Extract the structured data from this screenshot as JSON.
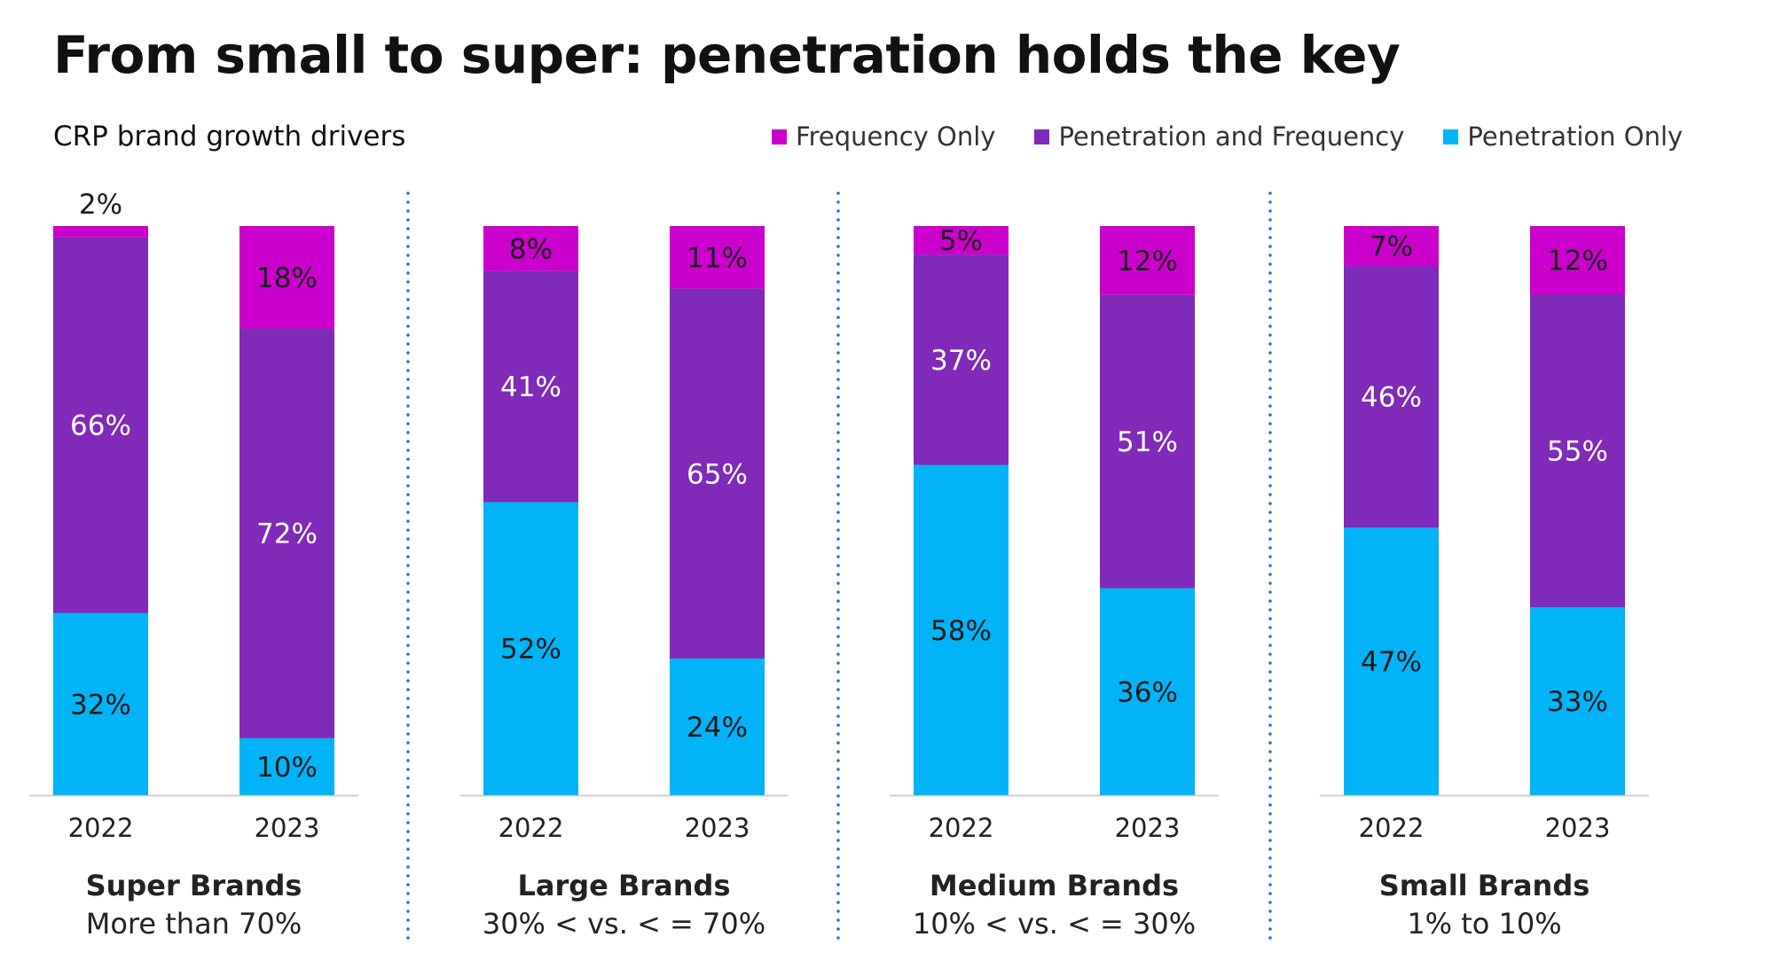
{
  "title": "From small to super: penetration holds the key",
  "subtitle": "CRP brand growth drivers",
  "colors": {
    "frequency_only": "#cc00cc",
    "penetration_and_frequency": "#7f2ab8",
    "penetration_only": "#00b4f7",
    "divider": "#1f6fd6",
    "baseline": "#d0d0d0"
  },
  "legend": [
    {
      "label": "Frequency Only",
      "color": "#cc00cc"
    },
    {
      "label": "Penetration and Frequency",
      "color": "#7f2ab8"
    },
    {
      "label": "Penetration Only",
      "color": "#00b4f7"
    }
  ],
  "chart_data": {
    "type": "bar",
    "stacked": true,
    "percent": true,
    "title": "From small to super: penetration holds the key",
    "subtitle": "CRP brand growth drivers",
    "legend_position": "top-right",
    "series_order_bottom_to_top": [
      "Penetration Only",
      "Penetration and Frequency",
      "Frequency Only"
    ],
    "groups": [
      {
        "name": "Super Brands",
        "sublabel": "More than 70%",
        "bars": [
          {
            "year": "2022",
            "penetration_only": 32,
            "penetration_and_frequency": 66,
            "frequency_only": 2
          },
          {
            "year": "2023",
            "penetration_only": 10,
            "penetration_and_frequency": 72,
            "frequency_only": 18
          }
        ]
      },
      {
        "name": "Large Brands",
        "sublabel": "30% < vs. < = 70%",
        "bars": [
          {
            "year": "2022",
            "penetration_only": 52,
            "penetration_and_frequency": 41,
            "frequency_only": 8
          },
          {
            "year": "2023",
            "penetration_only": 24,
            "penetration_and_frequency": 65,
            "frequency_only": 11
          }
        ]
      },
      {
        "name": "Medium Brands",
        "sublabel": "10% < vs. < = 30%",
        "bars": [
          {
            "year": "2022",
            "penetration_only": 58,
            "penetration_and_frequency": 37,
            "frequency_only": 5
          },
          {
            "year": "2023",
            "penetration_only": 36,
            "penetration_and_frequency": 51,
            "frequency_only": 12
          }
        ]
      },
      {
        "name": "Small Brands",
        "sublabel": "1% to 10%",
        "bars": [
          {
            "year": "2022",
            "penetration_only": 47,
            "penetration_and_frequency": 46,
            "frequency_only": 7
          },
          {
            "year": "2023",
            "penetration_only": 33,
            "penetration_and_frequency": 55,
            "frequency_only": 12
          }
        ]
      }
    ]
  }
}
